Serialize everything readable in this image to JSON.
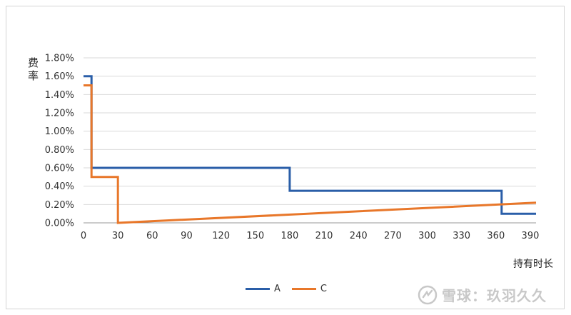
{
  "chart_data": {
    "type": "line",
    "ylabel": "费率",
    "xlabel": "持有时长",
    "xlim": [
      0,
      395
    ],
    "ylim": [
      0,
      1.8
    ],
    "xticks": [
      0,
      30,
      60,
      90,
      120,
      150,
      180,
      210,
      240,
      270,
      300,
      330,
      360,
      390
    ],
    "yticks": [
      "0.00%",
      "0.20%",
      "0.40%",
      "0.60%",
      "0.80%",
      "1.00%",
      "1.20%",
      "1.40%",
      "1.60%",
      "1.80%"
    ],
    "ytick_values": [
      0,
      0.2,
      0.4,
      0.6,
      0.8,
      1.0,
      1.2,
      1.4,
      1.6,
      1.8
    ],
    "grid": true,
    "legend_position": "bottom",
    "series": [
      {
        "name": "A",
        "color": "#2a5ea8",
        "points": [
          [
            0,
            1.6
          ],
          [
            7,
            1.6
          ],
          [
            7,
            0.6
          ],
          [
            180,
            0.6
          ],
          [
            180,
            0.35
          ],
          [
            365,
            0.35
          ],
          [
            365,
            0.1
          ],
          [
            395,
            0.1
          ]
        ]
      },
      {
        "name": "C",
        "color": "#e8772a",
        "points": [
          [
            0,
            1.5
          ],
          [
            7,
            1.5
          ],
          [
            7,
            0.5
          ],
          [
            30,
            0.5
          ],
          [
            30,
            0.0
          ],
          [
            395,
            0.22
          ]
        ]
      }
    ]
  },
  "watermark": {
    "text": "雪球：玖羽久久"
  }
}
